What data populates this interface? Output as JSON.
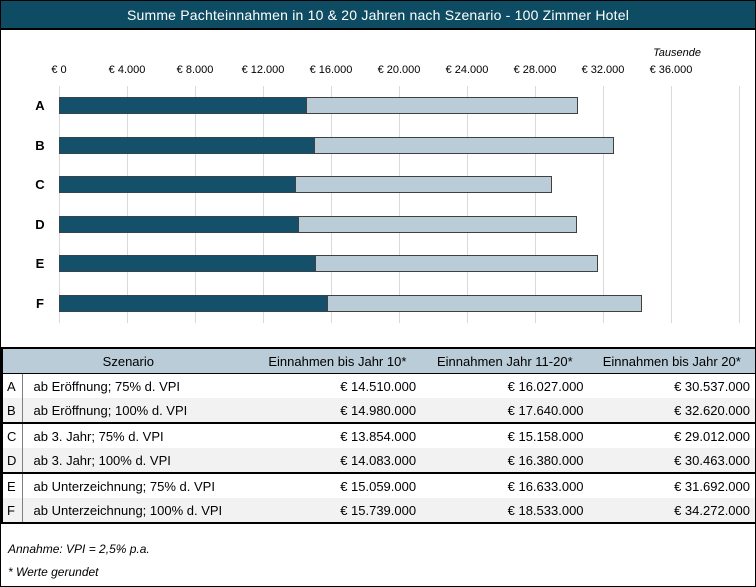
{
  "title": "Summe Pachteinnahmen in 10 & 20 Jahren nach Szenario - 100 Zimmer Hotel",
  "chart_data": {
    "type": "bar",
    "orientation": "horizontal",
    "stacked": true,
    "unit_label": "Tausende",
    "categories": [
      "A",
      "B",
      "C",
      "D",
      "E",
      "F"
    ],
    "series": [
      {
        "name": "Einnahmen bis Jahr 10",
        "values": [
          14510,
          14980,
          13854,
          14083,
          15059,
          15739
        ]
      },
      {
        "name": "Einnahmen Jahr 11-20",
        "values": [
          16027,
          17640,
          15158,
          16380,
          16633,
          18533
        ]
      }
    ],
    "totals": [
      30537,
      32620,
      29012,
      30463,
      31692,
      34272
    ],
    "xlim": [
      0,
      40000
    ],
    "tick_interval": 4000,
    "tick_labels": [
      "€ 0",
      "€ 4.000",
      "€ 8.000",
      "€ 12.000",
      "€ 16.000",
      "€ 20.000",
      "€ 24.000",
      "€ 28.000",
      "€ 32.000",
      "€ 36.000"
    ],
    "grid": true,
    "legend": "none",
    "colors": {
      "jahr10": "#15506A",
      "jahr1120": "#B9CCD8",
      "gridline": "#D9D9D9",
      "title_bg": "#0E4C64",
      "header_bg": "#B9CCD8",
      "alt_row": "#F2F2F2"
    }
  },
  "table": {
    "headers": {
      "szenario": "Szenario",
      "jahr10": "Einnahmen bis Jahr 10*",
      "jahr1120": "Einnahmen Jahr 11-20*",
      "jahr20": "Einnahmen bis Jahr 20*"
    },
    "rows": [
      {
        "key": "A",
        "szenario": "ab Eröffnung; 75% d. VPI",
        "jahr10": "€ 14.510.000",
        "jahr1120": "€ 16.027.000",
        "jahr20": "€ 30.537.000"
      },
      {
        "key": "B",
        "szenario": "ab Eröffnung; 100% d. VPI",
        "jahr10": "€ 14.980.000",
        "jahr1120": "€ 17.640.000",
        "jahr20": "€ 32.620.000"
      },
      {
        "key": "C",
        "szenario": "ab 3. Jahr; 75% d. VPI",
        "jahr10": "€ 13.854.000",
        "jahr1120": "€ 15.158.000",
        "jahr20": "€ 29.012.000"
      },
      {
        "key": "D",
        "szenario": "ab 3. Jahr; 100% d. VPI",
        "jahr10": "€ 14.083.000",
        "jahr1120": "€ 16.380.000",
        "jahr20": "€ 30.463.000"
      },
      {
        "key": "E",
        "szenario": "ab Unterzeichnung; 75% d. VPI",
        "jahr10": "€ 15.059.000",
        "jahr1120": "€ 16.633.000",
        "jahr20": "€ 31.692.000"
      },
      {
        "key": "F",
        "szenario": "ab Unterzeichnung; 100% d. VPI",
        "jahr10": "€ 15.739.000",
        "jahr1120": "€ 18.533.000",
        "jahr20": "€ 34.272.000"
      }
    ]
  },
  "footnotes": [
    "Annahme: VPI = 2,5% p.a.",
    "* Werte gerundet"
  ]
}
